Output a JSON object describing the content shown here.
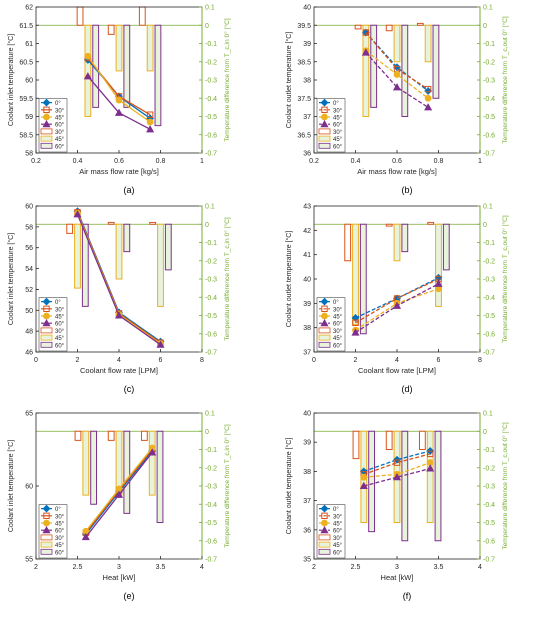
{
  "chart_data": [
    {
      "id": "a",
      "type": "line+bar",
      "caption": "(a)",
      "xlabel": "Air mass flow rate [kg/s]",
      "ylabel": "Coolant inlet temperature [°C]",
      "y2label": "Temperature difference from T_c,in 0° [°C]",
      "xlim": [
        0.2,
        1
      ],
      "xticks": [
        0.2,
        0.4,
        0.6,
        0.8,
        1
      ],
      "ylim": [
        58,
        62
      ],
      "yticks": [
        58,
        58.5,
        59,
        59.5,
        60,
        60.5,
        61,
        61.5,
        62
      ],
      "y2lim": [
        -0.7,
        0.1
      ],
      "y2ticks": [
        -0.7,
        -0.6,
        -0.5,
        -0.4,
        -0.3,
        -0.2,
        -0.1,
        0,
        0.1
      ],
      "x": [
        0.45,
        0.6,
        0.75
      ],
      "lines": [
        {
          "name": "0°",
          "values": [
            60.55,
            59.55,
            58.95
          ]
        },
        {
          "name": "30°",
          "values": [
            60.6,
            59.55,
            59.05
          ]
        },
        {
          "name": "45°",
          "values": [
            60.65,
            59.45,
            58.85
          ]
        },
        {
          "name": "60°",
          "values": [
            60.1,
            59.1,
            58.65
          ]
        }
      ],
      "bars": [
        {
          "name": "30°",
          "values": [
            0.1,
            -0.05,
            0.1
          ]
        },
        {
          "name": "45°",
          "values": [
            -0.5,
            -0.25,
            -0.25
          ]
        },
        {
          "name": "60°",
          "values": [
            -0.45,
            -0.45,
            -0.55
          ]
        }
      ]
    },
    {
      "id": "b",
      "type": "line+bar",
      "caption": "(b)",
      "xlabel": "Air mass flow rate [kg/s]",
      "ylabel": "Coolant outlet temperature [°C]",
      "y2label": "Temperature difference from T_c,out 0° [°C]",
      "xlim": [
        0.2,
        1
      ],
      "xticks": [
        0.2,
        0.4,
        0.6,
        0.8,
        1
      ],
      "ylim": [
        36,
        40
      ],
      "yticks": [
        36,
        36.5,
        37,
        37.5,
        38,
        38.5,
        39,
        39.5,
        40
      ],
      "y2lim": [
        -0.7,
        0.1
      ],
      "y2ticks": [
        -0.7,
        -0.6,
        -0.5,
        -0.4,
        -0.3,
        -0.2,
        -0.1,
        0,
        0.1
      ],
      "x": [
        0.45,
        0.6,
        0.75
      ],
      "lines": [
        {
          "name": "0°",
          "values": [
            39.3,
            38.35,
            37.7
          ]
        },
        {
          "name": "30°",
          "values": [
            39.3,
            38.3,
            37.75
          ]
        },
        {
          "name": "45°",
          "values": [
            38.8,
            38.15,
            37.5
          ]
        },
        {
          "name": "60°",
          "values": [
            38.75,
            37.8,
            37.25
          ]
        }
      ],
      "bars": [
        {
          "name": "30°",
          "values": [
            -0.02,
            -0.03,
            0.01
          ]
        },
        {
          "name": "45°",
          "values": [
            -0.5,
            -0.2,
            -0.2
          ]
        },
        {
          "name": "60°",
          "values": [
            -0.45,
            -0.5,
            -0.4
          ]
        }
      ]
    },
    {
      "id": "c",
      "type": "line+bar",
      "caption": "(c)",
      "xlabel": "Coolant flow rate [LPM]",
      "ylabel": "Coolant inlet temperature [°C]",
      "y2label": "Temperature difference from T_c,in 0° [°C]",
      "xlim": [
        0,
        8
      ],
      "xticks": [
        0,
        2,
        4,
        6,
        8
      ],
      "ylim": [
        46,
        60
      ],
      "yticks": [
        46,
        48,
        50,
        52,
        54,
        56,
        58,
        60
      ],
      "y2lim": [
        -0.7,
        0.1
      ],
      "y2ticks": [
        -0.7,
        -0.6,
        -0.5,
        -0.4,
        -0.3,
        -0.2,
        -0.1,
        0,
        0.1
      ],
      "x": [
        2,
        4,
        6
      ],
      "lines": [
        {
          "name": "0°",
          "values": [
            59.5,
            49.8,
            47.0
          ]
        },
        {
          "name": "30°",
          "values": [
            59.4,
            49.7,
            46.9
          ]
        },
        {
          "name": "45°",
          "values": [
            59.3,
            49.6,
            46.8
          ]
        },
        {
          "name": "60°",
          "values": [
            59.2,
            49.5,
            46.7
          ]
        }
      ],
      "bars": [
        {
          "name": "30°",
          "values": [
            -0.05,
            0.01,
            0.01
          ]
        },
        {
          "name": "45°",
          "values": [
            -0.35,
            -0.3,
            -0.45
          ]
        },
        {
          "name": "60°",
          "values": [
            -0.45,
            -0.15,
            -0.25
          ]
        }
      ]
    },
    {
      "id": "d",
      "type": "line+bar",
      "caption": "(d)",
      "xlabel": "Coolant flow rate [LPM]",
      "ylabel": "Coolant outlet temperature [°C]",
      "y2label": "Temperature difference from T_c,out 0° [°C]",
      "xlim": [
        0,
        8
      ],
      "xticks": [
        0,
        2,
        4,
        6,
        8
      ],
      "ylim": [
        37,
        43
      ],
      "yticks": [
        37,
        38,
        39,
        40,
        41,
        42,
        43
      ],
      "y2lim": [
        -0.7,
        0.1
      ],
      "y2ticks": [
        -0.7,
        -0.6,
        -0.5,
        -0.4,
        -0.3,
        -0.2,
        -0.1,
        0,
        0.1
      ],
      "x": [
        2,
        4,
        6
      ],
      "lines": [
        {
          "name": "0°",
          "values": [
            38.4,
            39.2,
            40.05
          ]
        },
        {
          "name": "30°",
          "values": [
            38.2,
            39.2,
            40.0
          ]
        },
        {
          "name": "45°",
          "values": [
            37.9,
            39.0,
            39.6
          ]
        },
        {
          "name": "60°",
          "values": [
            37.8,
            38.9,
            39.8
          ]
        }
      ],
      "bars": [
        {
          "name": "30°",
          "values": [
            -0.2,
            -0.01,
            0.01
          ]
        },
        {
          "name": "45°",
          "values": [
            -0.55,
            -0.2,
            -0.45
          ]
        },
        {
          "name": "60°",
          "values": [
            -0.6,
            -0.15,
            -0.25
          ]
        }
      ]
    },
    {
      "id": "e",
      "type": "line+bar",
      "caption": "(e)",
      "xlabel": "Heat [kW]",
      "ylabel": "Coolant inlet temperature [°C]",
      "y2label": "Temperature difference from T_c,in 0° [°C]",
      "xlim": [
        2,
        4
      ],
      "xticks": [
        2,
        2.5,
        3,
        3.5,
        4
      ],
      "ylim": [
        55,
        65
      ],
      "yticks": [
        55,
        60,
        65
      ],
      "y2lim": [
        -0.7,
        0.1
      ],
      "y2ticks": [
        -0.7,
        -0.6,
        -0.5,
        -0.4,
        -0.3,
        -0.2,
        -0.1,
        0,
        0.1
      ],
      "x": [
        2.6,
        3.0,
        3.4
      ],
      "lines": [
        {
          "name": "0°",
          "values": [
            56.7,
            59.6,
            62.4
          ]
        },
        {
          "name": "30°",
          "values": [
            56.8,
            59.7,
            62.5
          ]
        },
        {
          "name": "45°",
          "values": [
            56.9,
            59.8,
            62.6
          ]
        },
        {
          "name": "60°",
          "values": [
            56.5,
            59.4,
            62.3
          ]
        }
      ],
      "bars": [
        {
          "name": "30°",
          "values": [
            -0.05,
            -0.05,
            -0.05
          ]
        },
        {
          "name": "45°",
          "values": [
            -0.35,
            -0.35,
            -0.35
          ]
        },
        {
          "name": "60°",
          "values": [
            -0.4,
            -0.45,
            -0.5
          ]
        }
      ]
    },
    {
      "id": "f",
      "type": "line+bar",
      "caption": "(f)",
      "xlabel": "Heat [kW]",
      "ylabel": "Coolant outlet temperature [°C]",
      "y2label": "Temperature difference from T_c,out 0° [°C]",
      "xlim": [
        2,
        4
      ],
      "xticks": [
        2,
        2.5,
        3,
        3.5,
        4
      ],
      "ylim": [
        35,
        40
      ],
      "yticks": [
        35,
        36,
        37,
        38,
        39,
        40
      ],
      "y2lim": [
        -0.7,
        0.1
      ],
      "y2ticks": [
        -0.7,
        -0.6,
        -0.5,
        -0.4,
        -0.3,
        -0.2,
        -0.1,
        0,
        0.1
      ],
      "x": [
        2.6,
        3.0,
        3.4
      ],
      "lines": [
        {
          "name": "0°",
          "values": [
            38.0,
            38.4,
            38.7
          ]
        },
        {
          "name": "30°",
          "values": [
            37.9,
            38.3,
            38.6
          ]
        },
        {
          "name": "45°",
          "values": [
            37.8,
            37.9,
            38.3
          ]
        },
        {
          "name": "60°",
          "values": [
            37.5,
            37.8,
            38.1
          ]
        }
      ],
      "bars": [
        {
          "name": "30°",
          "values": [
            -0.15,
            -0.1,
            -0.1
          ]
        },
        {
          "name": "45°",
          "values": [
            -0.5,
            -0.5,
            -0.5
          ]
        },
        {
          "name": "60°",
          "values": [
            -0.55,
            -0.6,
            -0.6
          ]
        }
      ]
    }
  ],
  "style": {
    "line_colors": [
      "#0072BD",
      "#D95319",
      "#EDB120",
      "#7E2F8E"
    ],
    "bar_edge_colors": [
      "#D95319",
      "#EDB120",
      "#7E2F8E"
    ],
    "right_axis_color": "#77AC30",
    "bar_fill": "#e8f3dc"
  }
}
